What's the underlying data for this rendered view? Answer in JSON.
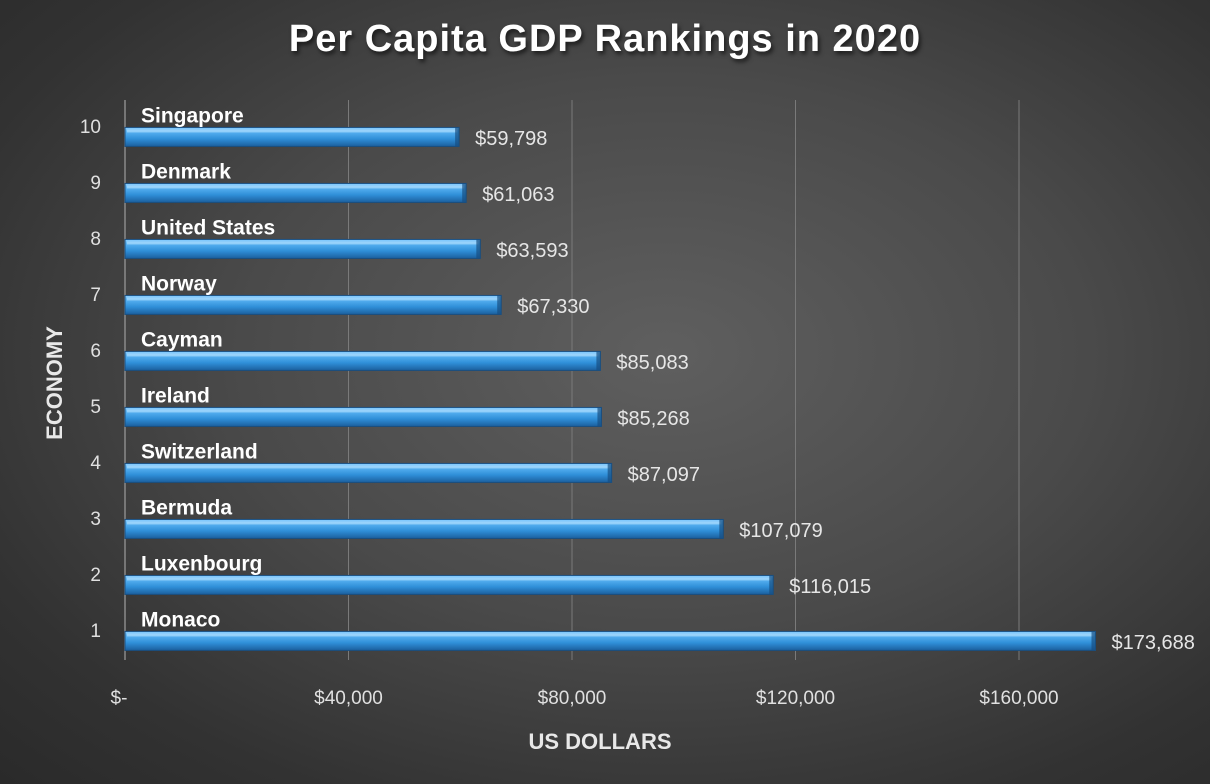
{
  "chart_data": {
    "type": "bar",
    "orientation": "horizontal",
    "title": "Per Capita GDP Rankings in 2020",
    "xlabel": "US DOLLARS",
    "ylabel": "ECONOMY",
    "xlim": [
      0,
      180000
    ],
    "x_ticks": [
      0,
      40000,
      80000,
      120000,
      160000
    ],
    "x_tick_labels": [
      "$-",
      "$40,000",
      "$80,000",
      "$120,000",
      "$160,000"
    ],
    "grid": true,
    "legend": "none",
    "ranks": [
      "1",
      "2",
      "3",
      "4",
      "5",
      "6",
      "7",
      "8",
      "9",
      "10"
    ],
    "categories": [
      "Monaco",
      "Luxenbourg",
      "Bermuda",
      "Switzerland",
      "Ireland",
      "Cayman",
      "Norway",
      "United States",
      "Denmark",
      "Singapore"
    ],
    "values": [
      173688,
      116015,
      107079,
      87097,
      85268,
      85083,
      67330,
      63593,
      61063,
      59798
    ],
    "value_labels": [
      "$173,688",
      "$116,015",
      "$107,079",
      "$87,097",
      "$85,268",
      "$85,083",
      "$67,330",
      "$63,593",
      "$61,063",
      "$59,798"
    ],
    "bar_color": "#2f8fd8"
  }
}
